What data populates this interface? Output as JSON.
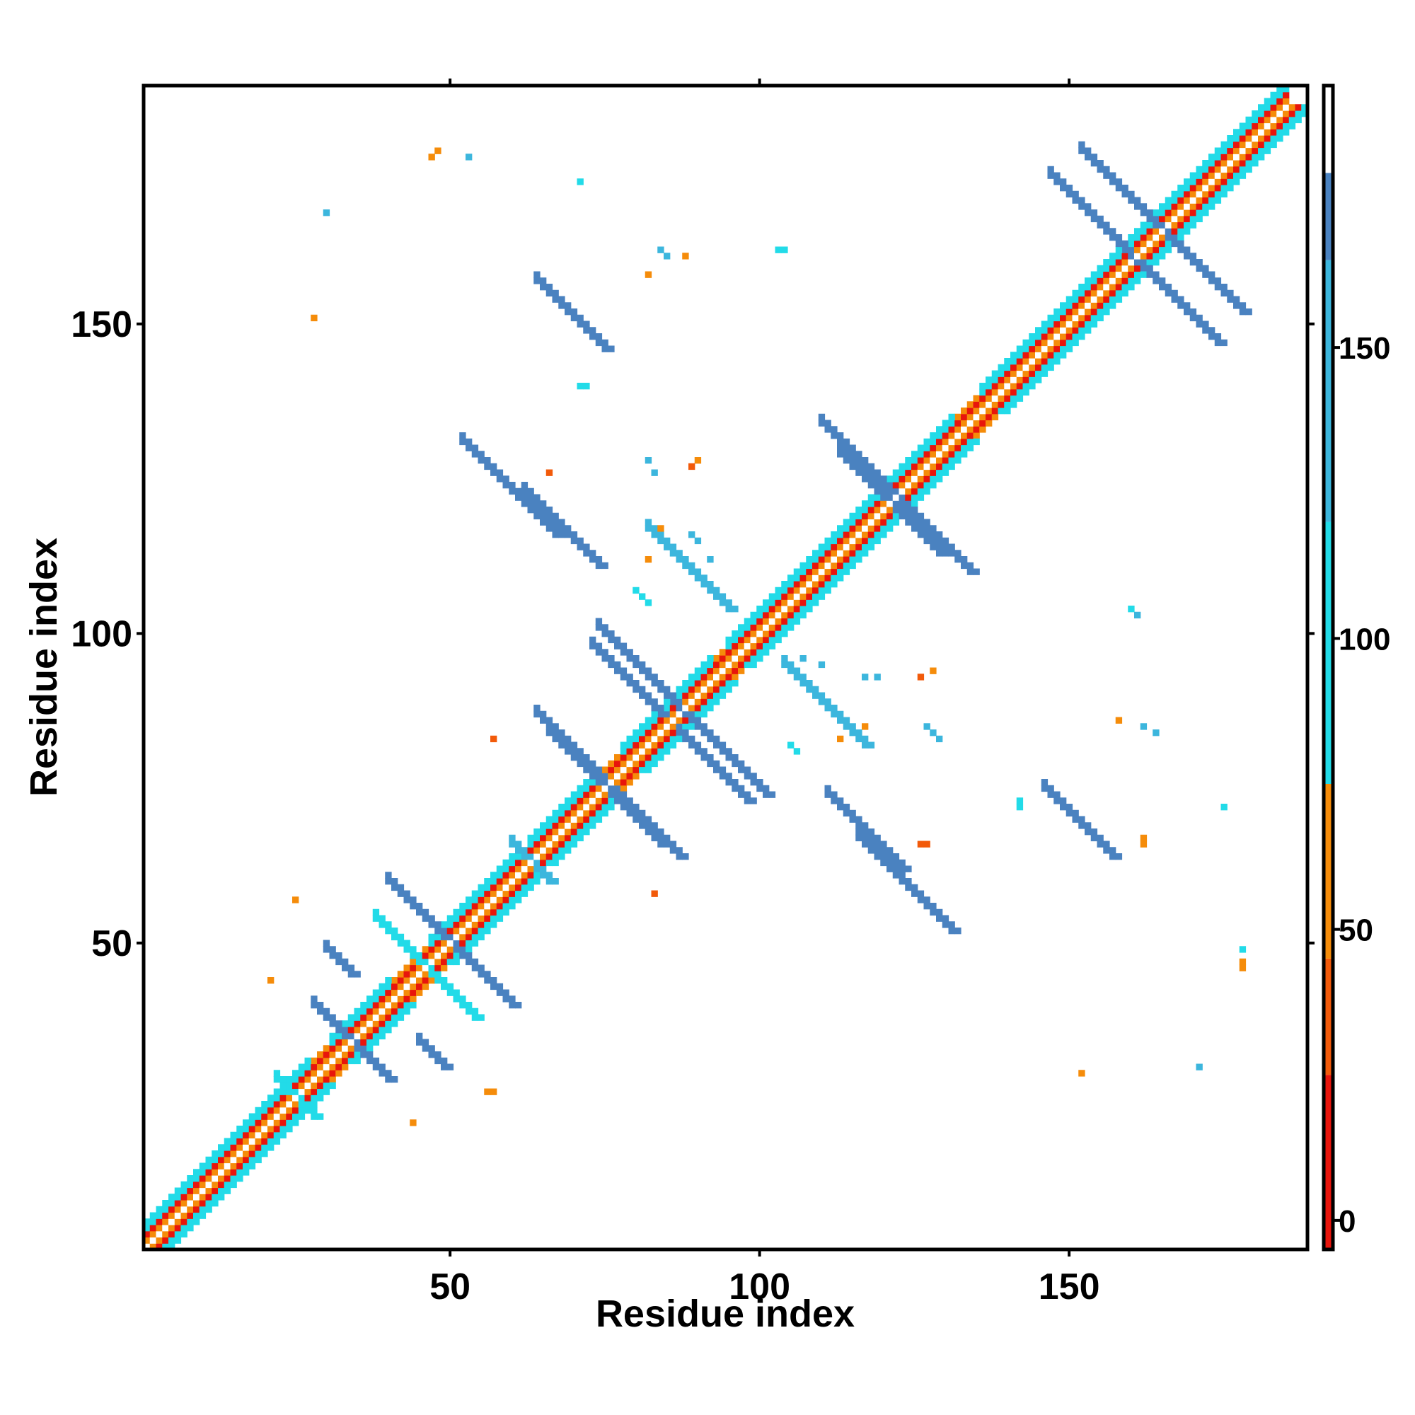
{
  "chart_data": {
    "type": "heatmap",
    "title": "",
    "xlabel": "Residue index",
    "ylabel": "Residue index",
    "xlim": [
      1,
      188
    ],
    "ylim": [
      1,
      188
    ],
    "x_ticks": [
      50,
      100,
      150
    ],
    "y_ticks": [
      50,
      100,
      150
    ],
    "symmetric": true,
    "colorbar": {
      "ticks": [
        0,
        50,
        100,
        150
      ],
      "range": [
        -5,
        195
      ],
      "stops": [
        {
          "from": -5,
          "to": 25,
          "color": "#e8150c"
        },
        {
          "from": 25,
          "to": 45,
          "color": "#f25a0a"
        },
        {
          "from": 45,
          "to": 75,
          "color": "#f58c0a"
        },
        {
          "from": 75,
          "to": 175,
          "color": "#22dbe8"
        },
        {
          "from": 120,
          "to": 175,
          "color": "#3cb6dd"
        },
        {
          "from": 175,
          "to": 185,
          "color": "#4a82c0"
        },
        {
          "from": 185,
          "to": 195,
          "color": "#ffffff"
        }
      ]
    },
    "diagonal_value": 190,
    "near_diagonal": [
      {
        "offset": 1,
        "value": 60
      },
      {
        "offset": 2,
        "value": 20
      },
      {
        "offset": 3,
        "value": 45
      }
    ],
    "helix_segments": [
      [
        1,
        10
      ],
      [
        11,
        18
      ],
      [
        19,
        27
      ],
      [
        31,
        40
      ],
      [
        47,
        61
      ],
      [
        63,
        73
      ],
      [
        78,
        92
      ],
      [
        95,
        108
      ],
      [
        109,
        119
      ],
      [
        120,
        131
      ],
      [
        136,
        146
      ],
      [
        147,
        160
      ],
      [
        161,
        185
      ]
    ],
    "strand_pairings": [
      {
        "i": 22,
        "j": 28,
        "len": 6,
        "type": "anti",
        "value": 100
      },
      {
        "i": 28,
        "j": 40,
        "len": 6,
        "type": "anti",
        "value": 175
      },
      {
        "i": 38,
        "j": 54,
        "len": 8,
        "type": "anti",
        "value": 100
      },
      {
        "i": 40,
        "j": 60,
        "len": 14,
        "type": "anti",
        "value": 175
      },
      {
        "i": 45,
        "j": 34,
        "len": 5,
        "type": "anti",
        "value": 180
      },
      {
        "i": 60,
        "j": 66,
        "len": 6,
        "type": "anti",
        "value": 170
      },
      {
        "i": 66,
        "j": 84,
        "len": 16,
        "type": "anti",
        "value": 175
      },
      {
        "i": 64,
        "j": 87,
        "len": 14,
        "type": "anti",
        "value": 175
      },
      {
        "i": 73,
        "j": 98,
        "len": 12,
        "type": "anti",
        "value": 175
      },
      {
        "i": 74,
        "j": 101,
        "len": 16,
        "type": "anti",
        "value": 175
      },
      {
        "i": 104,
        "j": 95,
        "len": 14,
        "type": "anti",
        "value": 170
      },
      {
        "i": 113,
        "j": 129,
        "len": 14,
        "type": "anti",
        "value": 175
      },
      {
        "i": 110,
        "j": 134,
        "len": 12,
        "type": "anti",
        "value": 175
      },
      {
        "i": 147,
        "j": 174,
        "len": 16,
        "type": "anti",
        "value": 175
      },
      {
        "i": 152,
        "j": 178,
        "len": 14,
        "type": "anti",
        "value": 175
      },
      {
        "i": 64,
        "j": 157,
        "len": 12,
        "type": "anti",
        "value": 175
      },
      {
        "i": 52,
        "j": 131,
        "len": 16,
        "type": "anti",
        "value": 175
      },
      {
        "i": 62,
        "j": 123,
        "len": 13,
        "type": "anti",
        "value": 175
      }
    ],
    "scattered_contacts": [
      {
        "x": 47,
        "y": 177,
        "value": 60
      },
      {
        "x": 48,
        "y": 178,
        "value": 60
      },
      {
        "x": 53,
        "y": 177,
        "value": 170
      },
      {
        "x": 71,
        "y": 173,
        "value": 100
      },
      {
        "x": 30,
        "y": 168,
        "value": 170
      },
      {
        "x": 28,
        "y": 151,
        "value": 60
      },
      {
        "x": 88,
        "y": 161,
        "value": 60
      },
      {
        "x": 82,
        "y": 158,
        "value": 60
      },
      {
        "x": 103,
        "y": 162,
        "value": 100
      },
      {
        "x": 104,
        "y": 162,
        "value": 100
      },
      {
        "x": 84,
        "y": 162,
        "value": 170
      },
      {
        "x": 85,
        "y": 161,
        "value": 170
      },
      {
        "x": 71,
        "y": 140,
        "value": 100
      },
      {
        "x": 72,
        "y": 140,
        "value": 100
      },
      {
        "x": 82,
        "y": 128,
        "value": 170
      },
      {
        "x": 83,
        "y": 126,
        "value": 170
      },
      {
        "x": 90,
        "y": 128,
        "value": 60
      },
      {
        "x": 89,
        "y": 127,
        "value": 25
      },
      {
        "x": 66,
        "y": 126,
        "value": 25
      },
      {
        "x": 84,
        "y": 117,
        "value": 60
      },
      {
        "x": 82,
        "y": 112,
        "value": 60
      },
      {
        "x": 80,
        "y": 107,
        "value": 100
      },
      {
        "x": 81,
        "y": 106,
        "value": 100
      },
      {
        "x": 82,
        "y": 105,
        "value": 100
      },
      {
        "x": 89,
        "y": 116,
        "value": 170
      },
      {
        "x": 90,
        "y": 115,
        "value": 170
      },
      {
        "x": 92,
        "y": 112,
        "value": 170
      },
      {
        "x": 160,
        "y": 104,
        "value": 100
      },
      {
        "x": 161,
        "y": 103,
        "value": 170
      },
      {
        "x": 107,
        "y": 96,
        "value": 170
      },
      {
        "x": 110,
        "y": 95,
        "value": 170
      },
      {
        "x": 117,
        "y": 93,
        "value": 170
      },
      {
        "x": 119,
        "y": 93,
        "value": 170
      },
      {
        "x": 126,
        "y": 93,
        "value": 25
      },
      {
        "x": 128,
        "y": 94,
        "value": 60
      },
      {
        "x": 105,
        "y": 82,
        "value": 100
      },
      {
        "x": 106,
        "y": 81,
        "value": 100
      },
      {
        "x": 117,
        "y": 85,
        "value": 60
      },
      {
        "x": 113,
        "y": 83,
        "value": 60
      },
      {
        "x": 127,
        "y": 85,
        "value": 170
      },
      {
        "x": 128,
        "y": 84,
        "value": 170
      },
      {
        "x": 129,
        "y": 83,
        "value": 170
      },
      {
        "x": 142,
        "y": 73,
        "value": 100
      },
      {
        "x": 142,
        "y": 72,
        "value": 100
      },
      {
        "x": 158,
        "y": 86,
        "value": 60
      },
      {
        "x": 162,
        "y": 85,
        "value": 170
      },
      {
        "x": 164,
        "y": 84,
        "value": 170
      },
      {
        "x": 162,
        "y": 67,
        "value": 60
      },
      {
        "x": 162,
        "y": 66,
        "value": 60
      },
      {
        "x": 175,
        "y": 72,
        "value": 100
      },
      {
        "x": 126,
        "y": 66,
        "value": 25
      },
      {
        "x": 127,
        "y": 66,
        "value": 25
      },
      {
        "x": 83,
        "y": 58,
        "value": 25
      },
      {
        "x": 57,
        "y": 83,
        "value": 25
      },
      {
        "x": 25,
        "y": 57,
        "value": 60
      },
      {
        "x": 21,
        "y": 44,
        "value": 60
      },
      {
        "x": 44,
        "y": 21,
        "value": 60
      },
      {
        "x": 56,
        "y": 26,
        "value": 45
      },
      {
        "x": 57,
        "y": 26,
        "value": 45
      },
      {
        "x": 152,
        "y": 29,
        "value": 60
      },
      {
        "x": 171,
        "y": 30,
        "value": 170
      },
      {
        "x": 178,
        "y": 49,
        "value": 100
      },
      {
        "x": 178,
        "y": 47,
        "value": 60
      },
      {
        "x": 178,
        "y": 46,
        "value": 60
      }
    ]
  }
}
